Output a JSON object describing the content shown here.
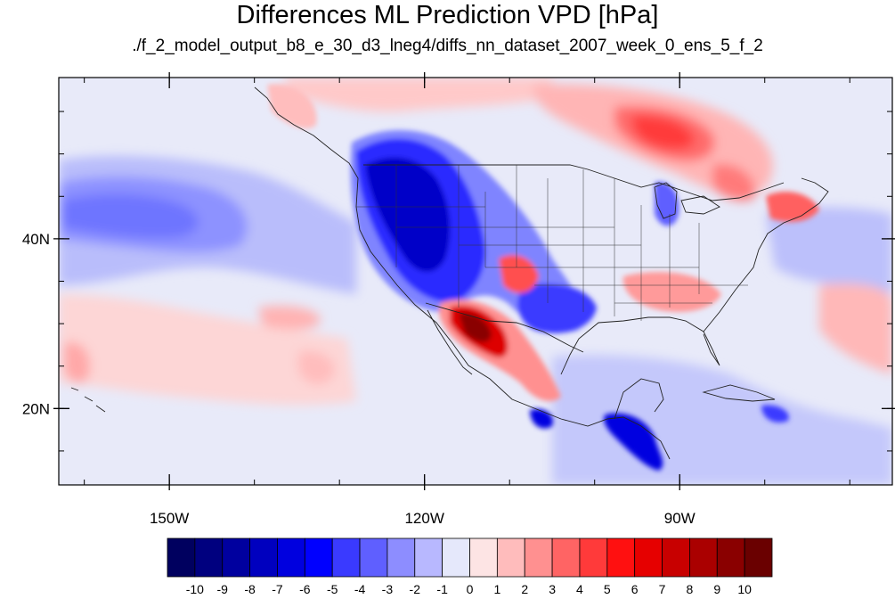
{
  "title": "Differences ML Prediction VPD [hPa]",
  "subtitle": "./f_2_model_output_b8_e_30_d3_lneg4/diffs_nn_dataset_2007_week_0_ens_5_f_2",
  "map": {
    "lon_range": [
      -163,
      -65
    ],
    "lat_range": [
      11,
      59
    ],
    "x_ticks": [
      {
        "lon": -150,
        "label": "150W"
      },
      {
        "lon": -120,
        "label": "120W"
      },
      {
        "lon": -90,
        "label": "90W"
      }
    ],
    "y_ticks": [
      {
        "lat": 40,
        "label": "40N"
      },
      {
        "lat": 20,
        "label": "20N"
      }
    ]
  },
  "colorbar": {
    "labels": [
      "-10",
      "-9",
      "-8",
      "-7",
      "-6",
      "-5",
      "-4",
      "-3",
      "-2",
      "-1",
      "0",
      "1",
      "2",
      "3",
      "4",
      "5",
      "6",
      "7",
      "8",
      "9",
      "10"
    ],
    "colors": [
      "#00005f",
      "#00007f",
      "#00009f",
      "#0000bf",
      "#0000df",
      "#0000ff",
      "#3a3aff",
      "#5f5fff",
      "#8d8dff",
      "#b8b8ff",
      "#e5e8fb",
      "#fde4e4",
      "#ffbcbc",
      "#ff9090",
      "#ff6464",
      "#ff3a3a",
      "#ff1010",
      "#e60000",
      "#c80000",
      "#aa0000",
      "#8a0000",
      "#6a0000"
    ]
  }
}
